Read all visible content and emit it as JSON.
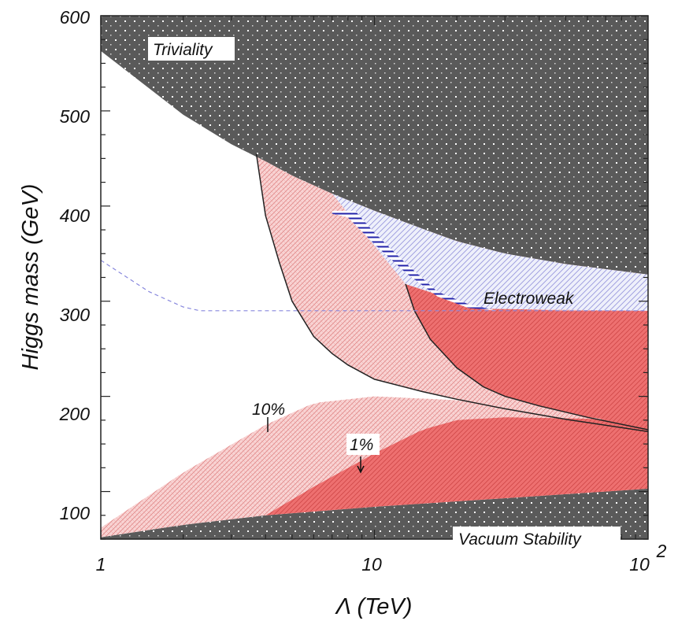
{
  "chart_data": {
    "type": "area",
    "title": "",
    "xlabel": "Λ (TeV)",
    "ylabel": "Higgs mass (GeV)",
    "xscale": "log",
    "xlim": [
      1,
      100
    ],
    "ylim": [
      50,
      600
    ],
    "xticks": [
      {
        "value": 1,
        "label": "1"
      },
      {
        "value": 10,
        "label": "10"
      },
      {
        "value": 100,
        "label": "10",
        "exponent": "2"
      }
    ],
    "yticks": [
      {
        "value": 100,
        "label": "100"
      },
      {
        "value": 200,
        "label": "200"
      },
      {
        "value": 300,
        "label": "300"
      },
      {
        "value": 400,
        "label": "400"
      },
      {
        "value": 500,
        "label": "500"
      },
      {
        "value": 600,
        "label": "600"
      }
    ],
    "region_labels": {
      "triviality": "Triviality",
      "electroweak": "Electroweak",
      "vacuum_stability": "Vacuum Stability",
      "ten_percent": "10%",
      "one_percent": "1%"
    },
    "colors": {
      "excluded": "#5a5a5a",
      "light_red": "#f8cccc",
      "red": "#ee7070",
      "blue_hatch": "#2222aa",
      "light_blue_hatch": "#9999dd"
    },
    "curves": {
      "triviality_bound": {
        "x": [
          1,
          2,
          3,
          4,
          5,
          7,
          10,
          15,
          20,
          30,
          50,
          100
        ],
        "y": [
          563,
          496,
          465,
          447,
          432,
          413,
          395,
          376,
          363,
          350,
          339,
          328
        ]
      },
      "vacuum_stability_bound": {
        "x": [
          1,
          2,
          4,
          10,
          30,
          100
        ],
        "y": [
          52,
          65,
          75,
          84,
          93,
          103
        ]
      },
      "fine_tuning_10pct_high": {
        "x": [
          3.7,
          4,
          4.5,
          5,
          6,
          7,
          8,
          10,
          15,
          20,
          30,
          50,
          100
        ],
        "y": [
          455,
          390,
          340,
          300,
          263,
          245,
          233,
          218,
          205,
          197,
          187,
          176,
          163
        ]
      },
      "fine_tuning_1pct_high": {
        "x": [
          13,
          14,
          16,
          20,
          25,
          30,
          40,
          60,
          100
        ],
        "y": [
          318,
          290,
          260,
          230,
          210,
          200,
          190,
          178,
          165
        ]
      },
      "fine_tuning_10pct_low": {
        "x": [
          1,
          2,
          4,
          6,
          10,
          20,
          40,
          100
        ],
        "y": [
          62,
          120,
          170,
          193,
          200,
          196,
          185,
          170
        ]
      },
      "fine_tuning_1pct_low": {
        "x": [
          4,
          6,
          10,
          15,
          20,
          30,
          50,
          100
        ],
        "y": [
          75,
          105,
          140,
          165,
          175,
          178,
          177,
          175
        ]
      },
      "electroweak_upper": {
        "x": [
          13,
          20,
          30,
          50,
          100
        ],
        "y": [
          318,
          300,
          292,
          290,
          290
        ]
      },
      "dashed_line": {
        "x": [
          1,
          1.5,
          2,
          2.3,
          3,
          5,
          10,
          20,
          30,
          100
        ],
        "y": [
          343,
          310,
          294,
          290,
          290,
          290,
          290,
          290,
          290,
          290
        ]
      }
    }
  }
}
